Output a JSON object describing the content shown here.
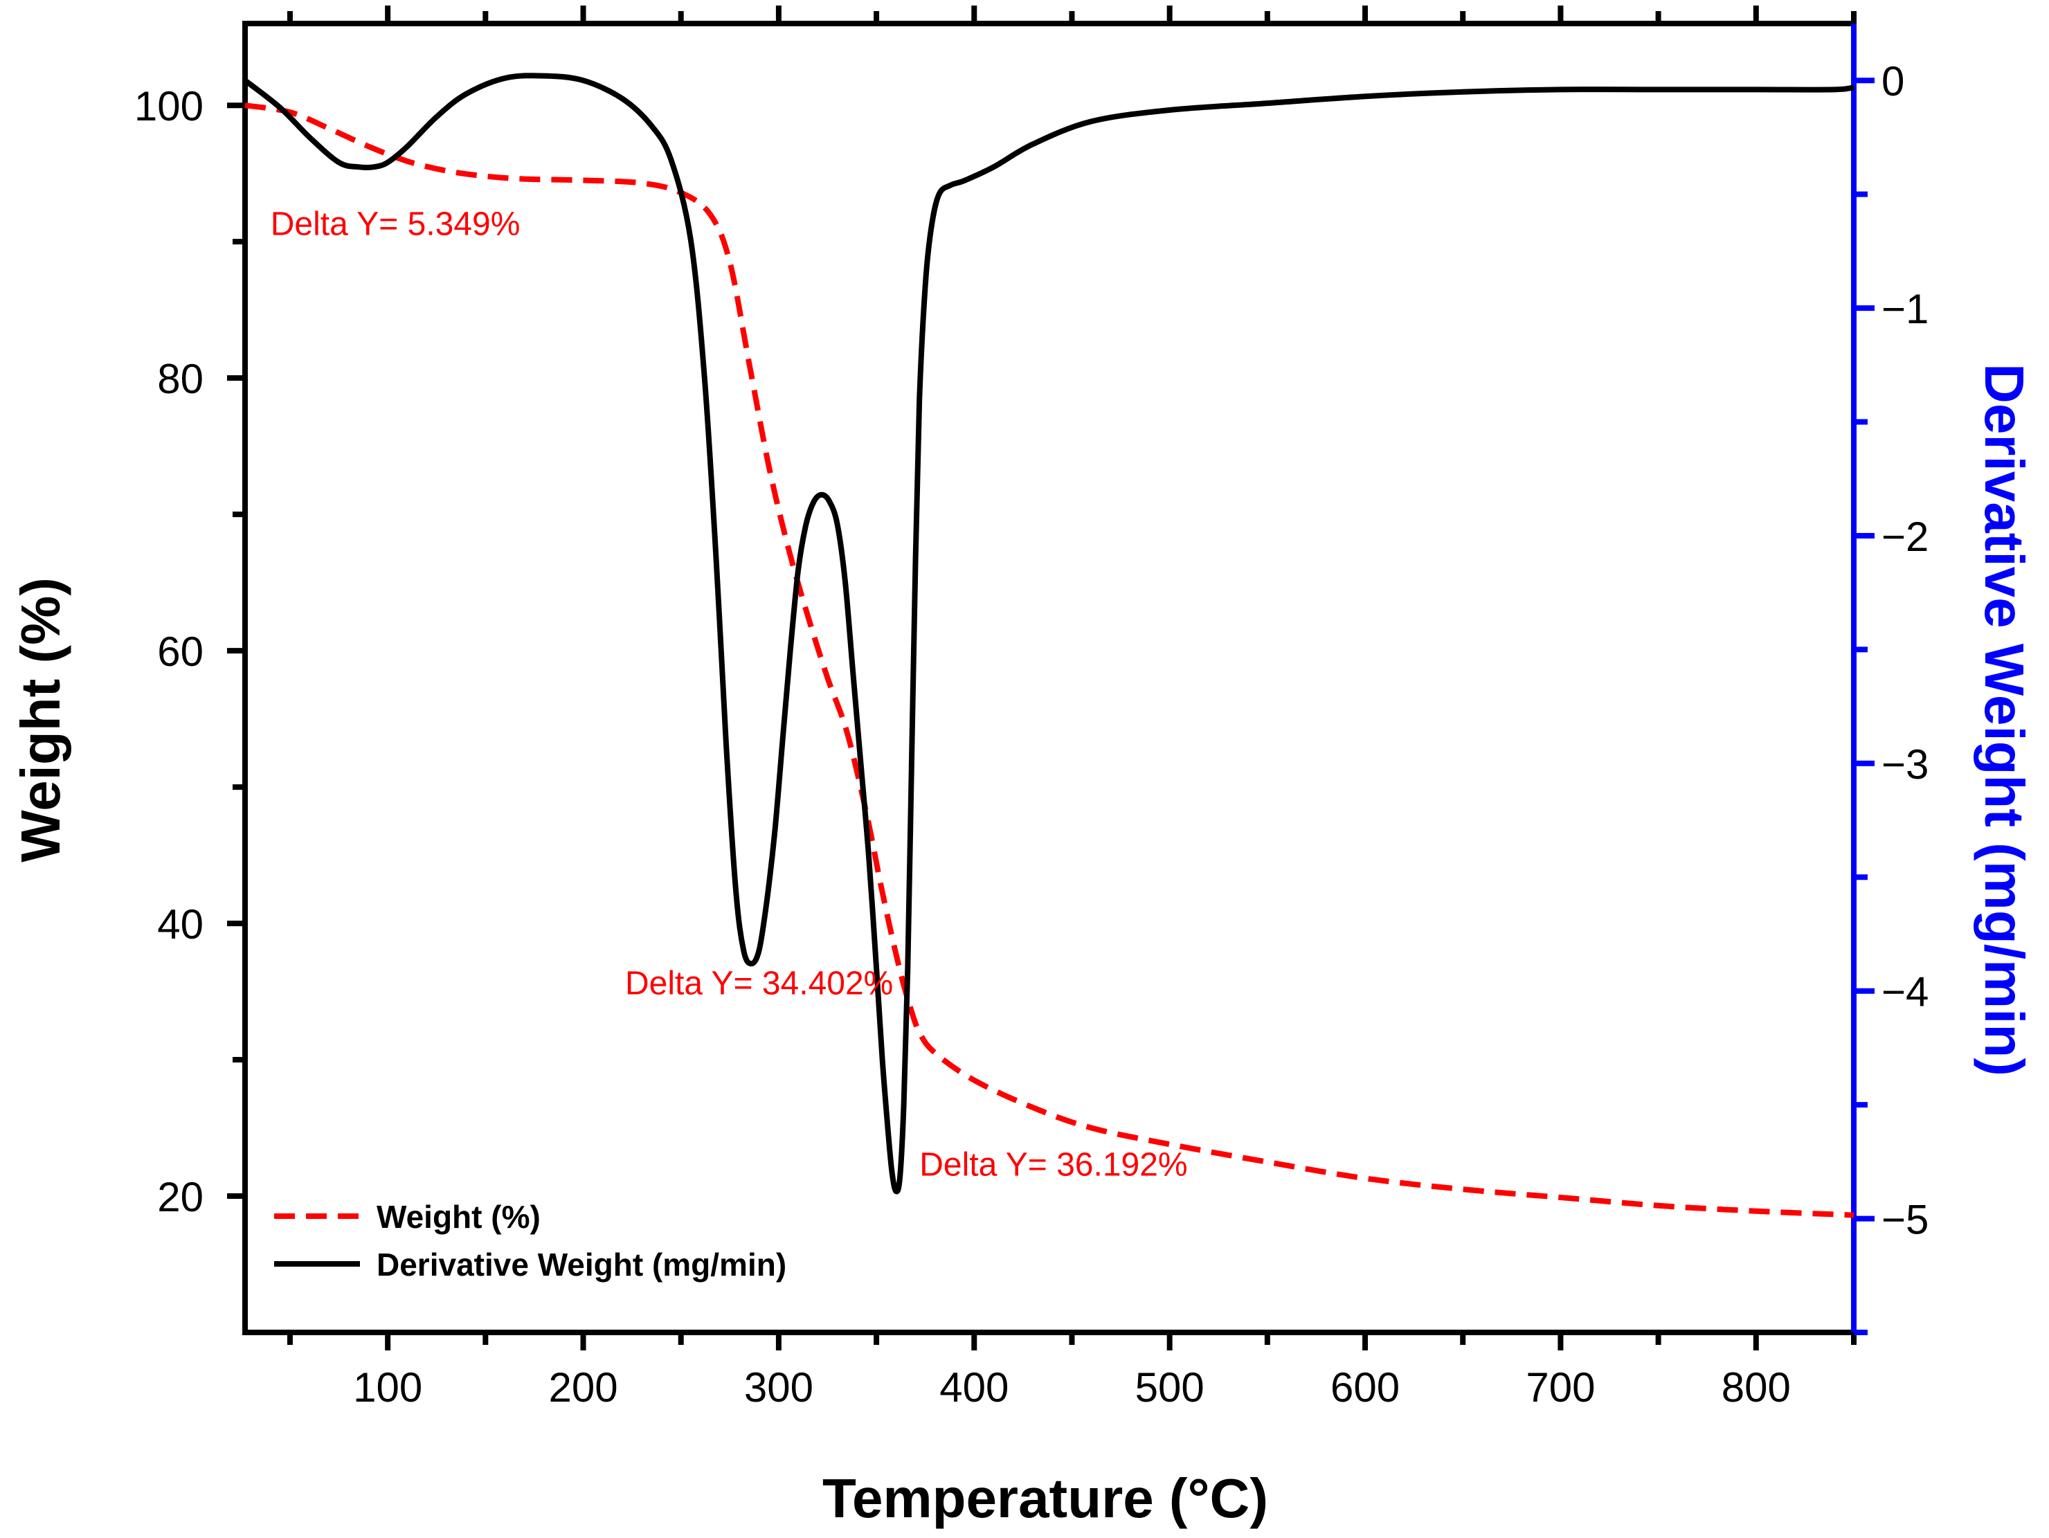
{
  "chart_data": {
    "type": "line",
    "title": "",
    "xlabel": "Temperature (°C)",
    "ylabel_left": "Weight (%)",
    "ylabel_right": "Derivative Weight (mg/min)",
    "xlim": [
      27,
      850
    ],
    "ylim_left": [
      10,
      106
    ],
    "ylim_right": [
      -5.5,
      0.25
    ],
    "x_ticks": [
      100,
      200,
      300,
      400,
      500,
      600,
      700,
      800
    ],
    "y_left_ticks": [
      20,
      40,
      60,
      80,
      100
    ],
    "y_right_ticks": [
      -5,
      -4,
      -3,
      -2,
      -1,
      0
    ],
    "y_right_tick_labels": [
      "−5",
      "−4",
      "−3",
      "−2",
      "−1",
      "0"
    ],
    "grid": false,
    "legend_position": "bottom-left",
    "series": [
      {
        "name": "Weight (%)",
        "axis": "left",
        "style": "dashed",
        "color": "#ff0000",
        "x": [
          27,
          50,
          70,
          90,
          110,
          130,
          150,
          170,
          200,
          230,
          250,
          265,
          275,
          285,
          295,
          305,
          315,
          325,
          335,
          345,
          352,
          358,
          363,
          367,
          372,
          380,
          400,
          430,
          460,
          500,
          550,
          600,
          650,
          700,
          750,
          800,
          850
        ],
        "y": [
          100,
          99.5,
          98.3,
          97,
          95.9,
          95.2,
          94.8,
          94.6,
          94.5,
          94.3,
          93.6,
          92,
          88.5,
          81,
          73.5,
          67.5,
          62.5,
          58,
          54,
          48,
          43,
          39,
          36,
          34,
          32,
          30.5,
          28.5,
          26.5,
          25,
          23.8,
          22.5,
          21.3,
          20.5,
          19.9,
          19.3,
          18.9,
          18.6
        ]
      },
      {
        "name": "Derivative Weight (mg/min)",
        "axis": "right",
        "style": "solid",
        "color": "#000000",
        "x": [
          27,
          45,
          60,
          75,
          85,
          93,
          100,
          110,
          125,
          140,
          160,
          180,
          200,
          220,
          235,
          245,
          255,
          262,
          268,
          273,
          278,
          282,
          286,
          290,
          294,
          298,
          302,
          306,
          310,
          314,
          318,
          322,
          326,
          330,
          334,
          338,
          342,
          346,
          350,
          353,
          356,
          358,
          360,
          362,
          364,
          366,
          368,
          370,
          372,
          375,
          378,
          382,
          388,
          395,
          410,
          430,
          460,
          500,
          550,
          600,
          650,
          700,
          750,
          800,
          840,
          850
        ],
        "y": [
          0,
          -0.12,
          -0.25,
          -0.36,
          -0.38,
          -0.38,
          -0.36,
          -0.29,
          -0.16,
          -0.06,
          0.01,
          0.02,
          0,
          -0.08,
          -0.2,
          -0.35,
          -0.7,
          -1.3,
          -2.1,
          -2.9,
          -3.55,
          -3.82,
          -3.88,
          -3.82,
          -3.6,
          -3.3,
          -2.9,
          -2.5,
          -2.15,
          -1.95,
          -1.85,
          -1.82,
          -1.85,
          -1.95,
          -2.2,
          -2.6,
          -3.0,
          -3.4,
          -3.9,
          -4.3,
          -4.62,
          -4.8,
          -4.88,
          -4.82,
          -4.5,
          -3.9,
          -3.0,
          -2.1,
          -1.4,
          -0.9,
          -0.65,
          -0.5,
          -0.46,
          -0.44,
          -0.38,
          -0.28,
          -0.18,
          -0.13,
          -0.1,
          -0.07,
          -0.05,
          -0.04,
          -0.04,
          -0.04,
          -0.04,
          -0.03
        ]
      }
    ],
    "annotations": [
      {
        "text": "Delta Y= 5.349%",
        "x": 40,
        "y_left": 90.5,
        "anchor": "start"
      },
      {
        "text": "Delta Y= 34.402%",
        "x": 290,
        "y_left": 34.8,
        "anchor": "middle"
      },
      {
        "text": "Delta Y= 36.192%",
        "x": 372,
        "y_left": 21.5,
        "anchor": "start"
      }
    ],
    "colors": {
      "axis_left": "#000000",
      "axis_right": "#0000ff",
      "annotation": "#ff0000"
    }
  }
}
